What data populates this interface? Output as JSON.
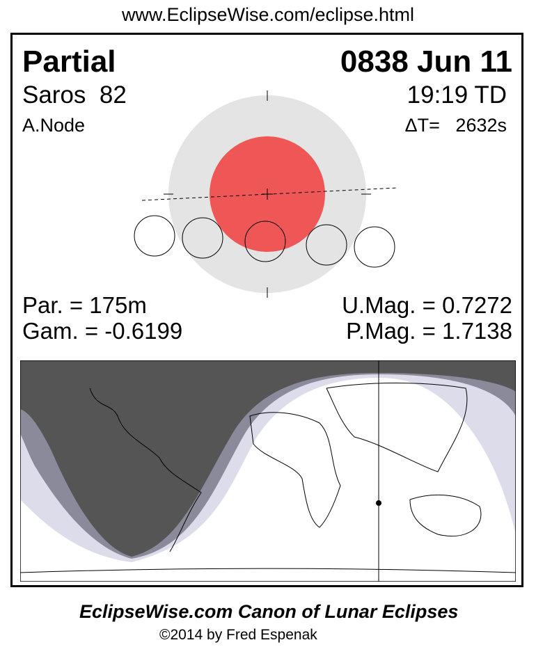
{
  "header": {
    "url": "www.EclipseWise.com/eclipse.html"
  },
  "eclipse": {
    "type": "Partial",
    "date": "0838 Jun 11",
    "saros": "Saros  82",
    "time": "19:19 TD",
    "node": "A.Node",
    "delta_t": "ΔT=   2632s",
    "duration": "Par. = 175m",
    "gamma": "Gam. = -0.6199",
    "umag": "U.Mag. = 0.7272",
    "pmag": "P.Mag. = 1.7138"
  },
  "colors": {
    "penumbra": "#e4e4e4",
    "umbra": "#ef5656",
    "map_dark": "#555555",
    "map_mid": "#8a8a9a",
    "map_light": "#dcdcea"
  },
  "footer": {
    "title": "EclipseWise.com Canon of Lunar Eclipses",
    "copyright": "©2014 by Fred Espenak"
  }
}
